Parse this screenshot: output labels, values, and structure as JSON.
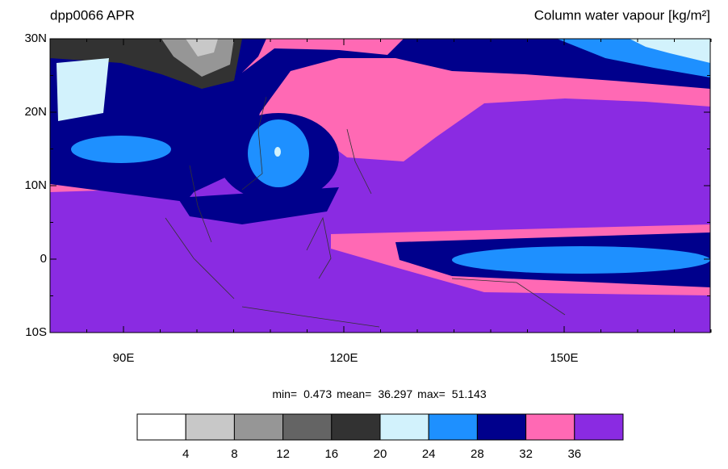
{
  "header": {
    "title": "dpp0066 APR",
    "subtitle": "Column water vapour [kg/m²]"
  },
  "map": {
    "lat_labels": [
      "30N",
      "20N",
      "10N",
      "0",
      "10S"
    ],
    "lon_labels": [
      "90E",
      "120E",
      "150E"
    ]
  },
  "stats": [
    {
      "label": "min=",
      "value": "0.473"
    },
    {
      "label": "mean=",
      "value": "36.297"
    },
    {
      "label": "max=",
      "value": "51.143"
    }
  ],
  "colorbar": {
    "colors": [
      "#ffffff",
      "#c8c8c8",
      "#969696",
      "#646464",
      "#323232",
      "#d2f2fc",
      "#1e90ff",
      "#00008c",
      "#ff69b4",
      "#8a2be2"
    ],
    "labels": [
      "4",
      "8",
      "12",
      "16",
      "20",
      "24",
      "28",
      "32",
      "36"
    ]
  }
}
